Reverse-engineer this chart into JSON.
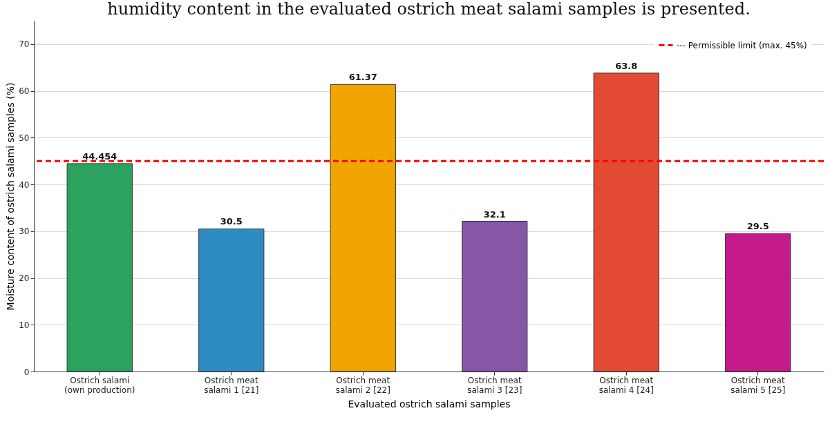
{
  "chart_data": {
    "type": "bar",
    "title": "humidity content in the evaluated ostrich meat salami samples is presented.",
    "xlabel": "Evaluated ostrich salami samples",
    "ylabel": "Moisture content of ostrich salami samples (%)",
    "categories": [
      "Ostrich salami\n(own production)",
      "Ostrich meat\nsalami 1 [21]",
      "Ostrich meat\nsalami 2 [22]",
      "Ostrich meat\nsalami 3 [23]",
      "Ostrich meat\nsalami 4 [24]",
      "Ostrich meat\nsalami 5 [25]"
    ],
    "values": [
      44.454,
      30.5,
      61.37,
      32.1,
      63.8,
      29.5
    ],
    "colors": [
      "#2ca25f",
      "#2e8bc0",
      "#f0a500",
      "#8856a7",
      "#e34a33",
      "#c51b8a"
    ],
    "ylim": [
      0,
      75
    ],
    "yticks": [
      0,
      10,
      20,
      30,
      40,
      50,
      60,
      70
    ],
    "grid": "y",
    "data_labels": true,
    "legend": "top right",
    "ref_lines": [
      {
        "axis": "y",
        "value": 45,
        "label": "--- Permissible limit (max. 45%)",
        "color": "#ff0000",
        "line_style": "dashed"
      }
    ]
  }
}
